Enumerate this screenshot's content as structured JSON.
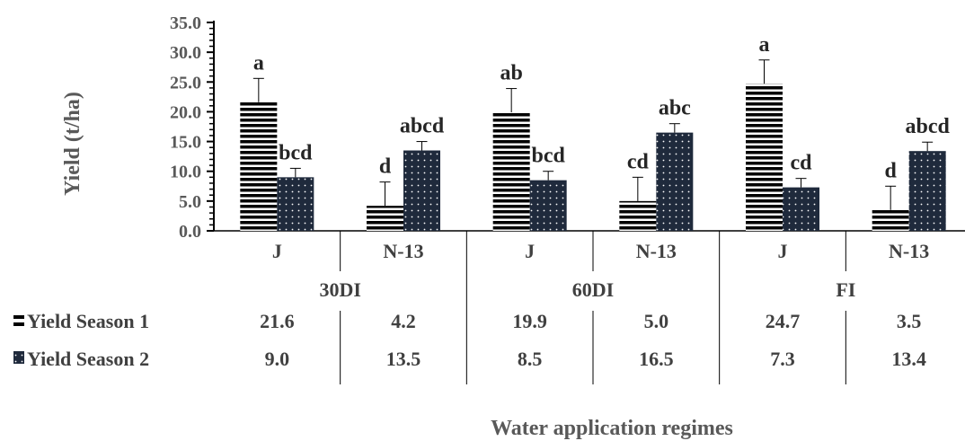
{
  "chart_data": {
    "type": "bar",
    "ylabel": "Yield (t/ha)",
    "xlabel": "Water application regimes",
    "ylim": [
      0,
      35
    ],
    "y_ticks": [
      "0.0",
      "5.0",
      "10.0",
      "15.0",
      "20.0",
      "25.0",
      "30.0",
      "35.0"
    ],
    "groups": [
      "30DI",
      "60DI",
      "FI"
    ],
    "categories": [
      "J",
      "N-13",
      "J",
      "N-13",
      "J",
      "N-13"
    ],
    "series": [
      {
        "name": "Yield Season 1",
        "values": [
          21.6,
          4.2,
          19.9,
          5.0,
          24.7,
          3.5
        ],
        "value_labels": [
          "21.6",
          "4.2",
          "19.9",
          "5.0",
          "24.7",
          "3.5"
        ],
        "error": [
          4.0,
          4.0,
          4.0,
          4.0,
          4.0,
          4.0
        ],
        "significance": [
          "a",
          "d",
          "ab",
          "cd",
          "a",
          "d"
        ]
      },
      {
        "name": "Yield Season 2",
        "values": [
          9.0,
          13.5,
          8.5,
          16.5,
          7.3,
          13.4
        ],
        "value_labels": [
          "9.0",
          "13.5",
          "8.5",
          "16.5",
          "7.3",
          "13.4"
        ],
        "error": [
          1.5,
          1.5,
          1.5,
          1.5,
          1.5,
          1.5
        ],
        "significance": [
          "bcd",
          "abcd",
          "bcd",
          "abc",
          "cd",
          "abcd"
        ]
      }
    ],
    "legend": "bottom-left (data table)",
    "grid": false
  }
}
